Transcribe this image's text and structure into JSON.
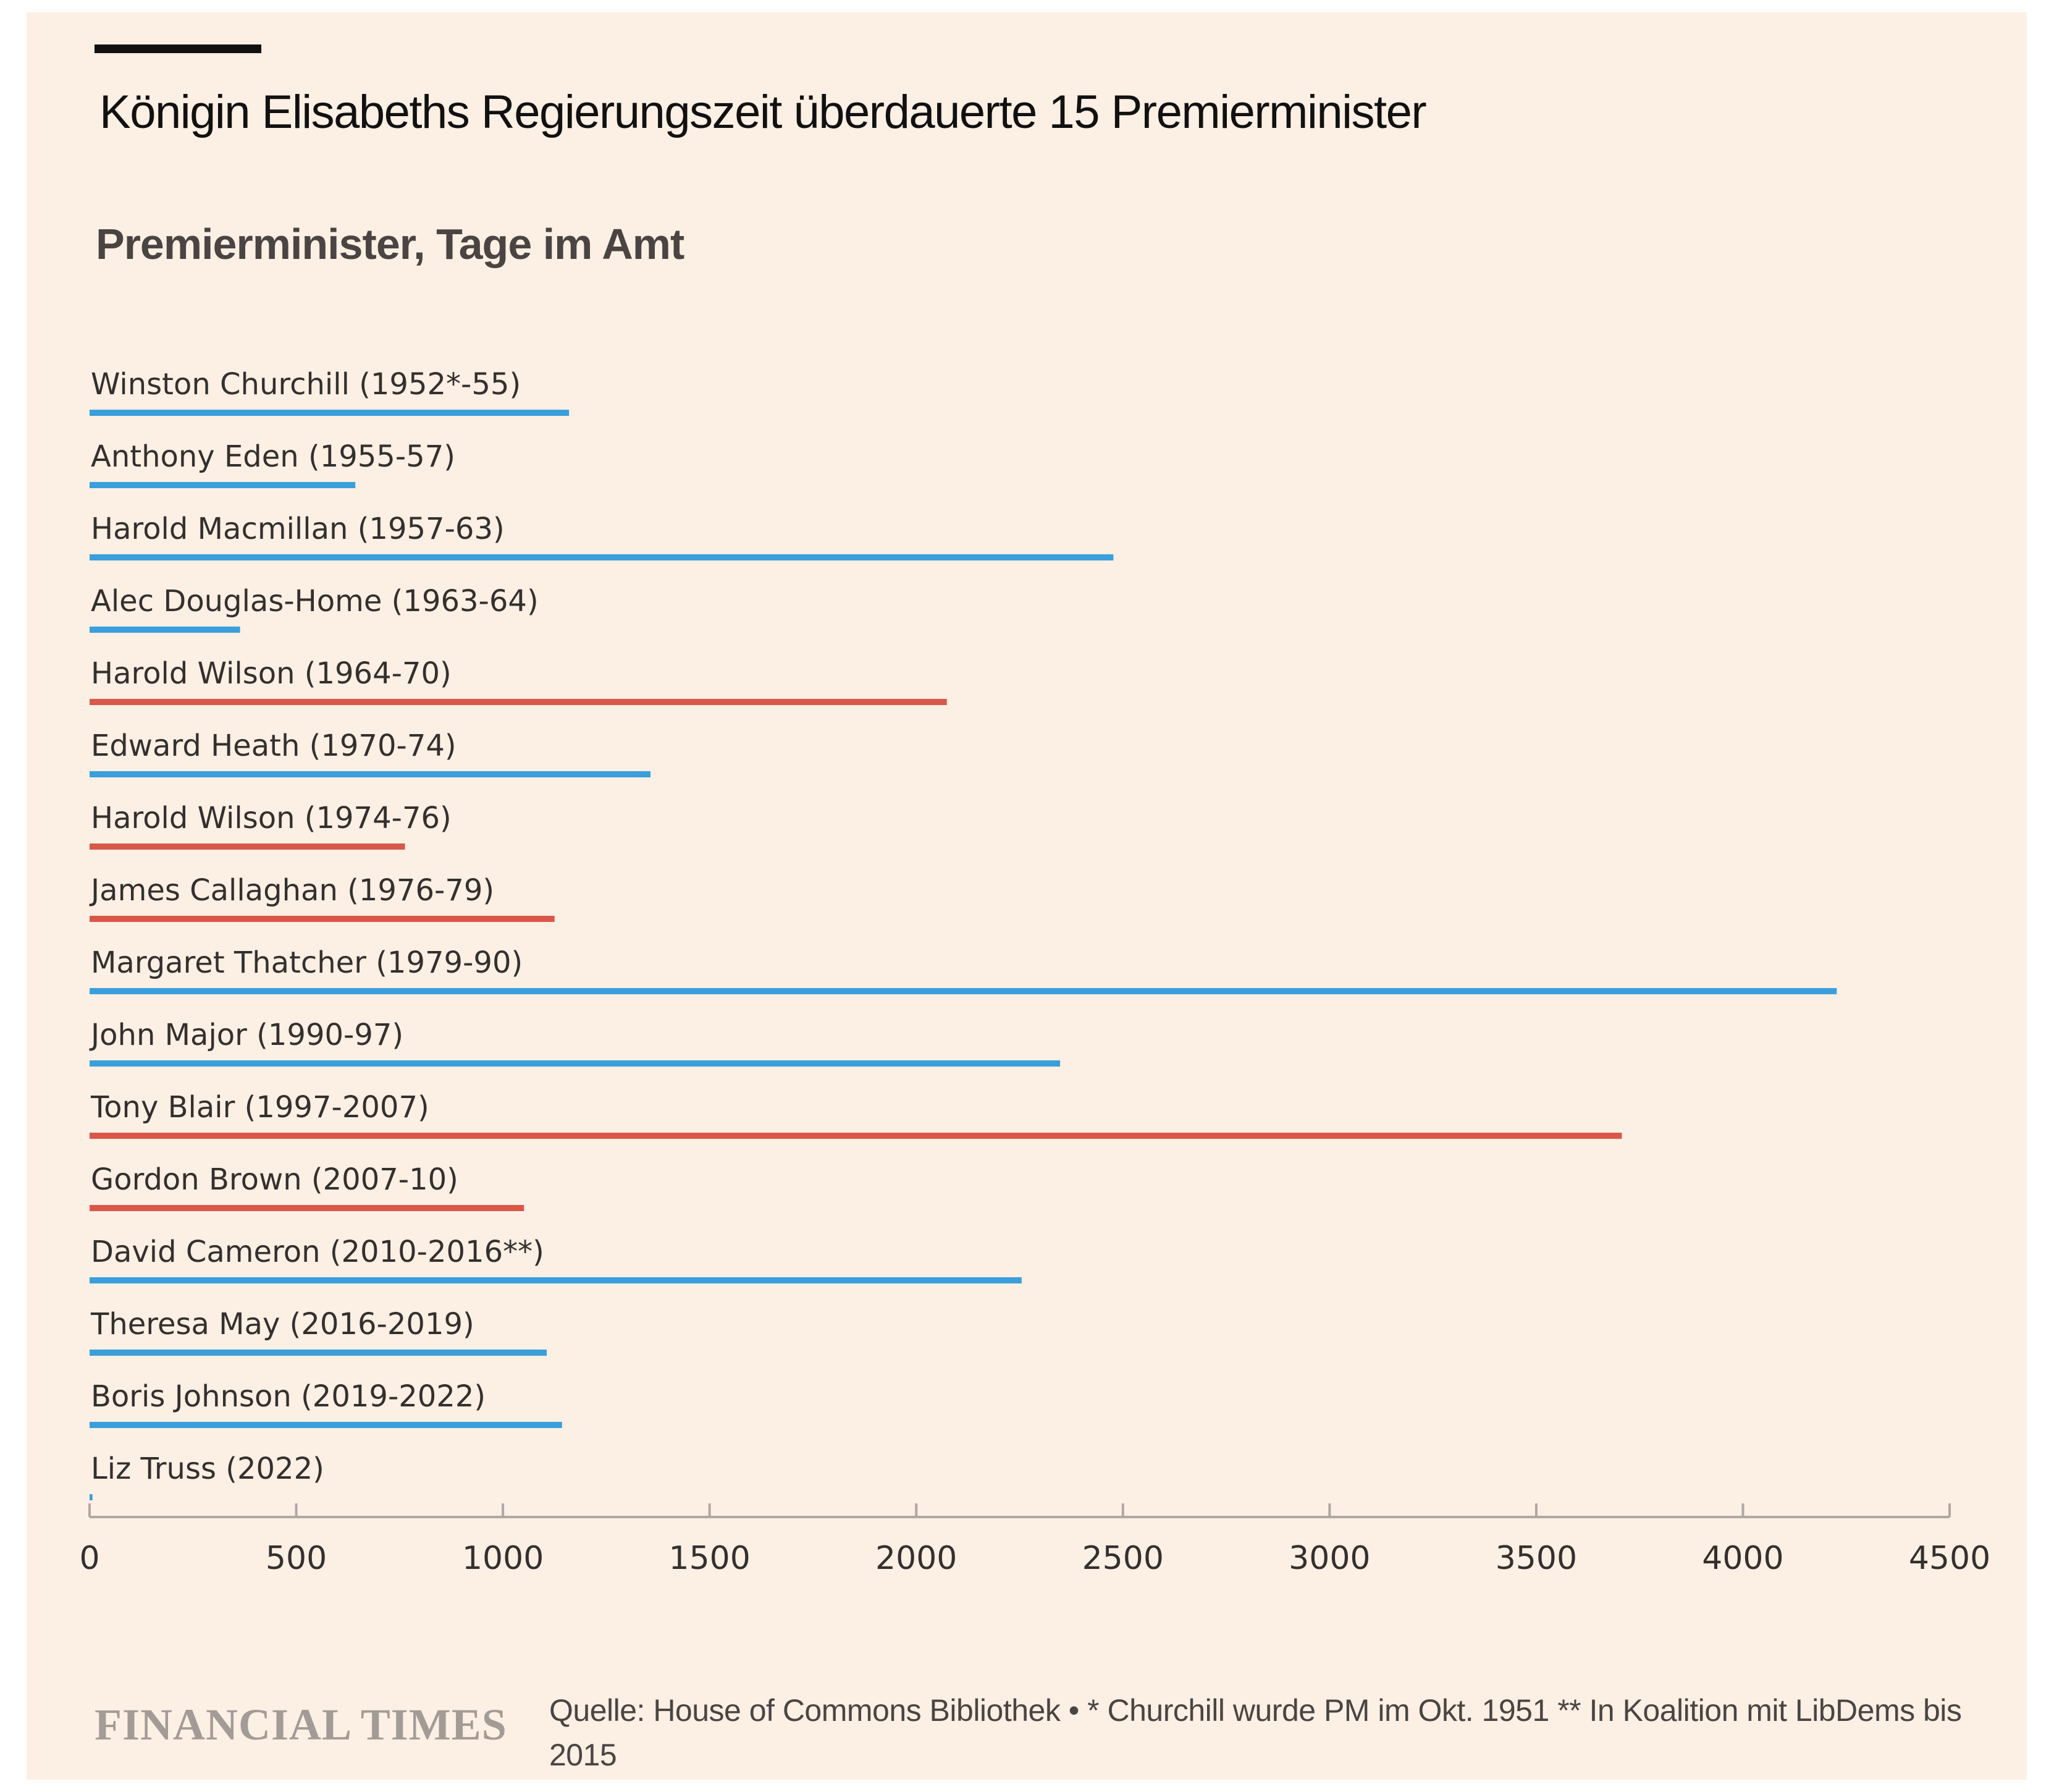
{
  "header": {
    "title": "Königin Elisabeths Regierungszeit überdauerte 15 Premierminister",
    "subtitle": "Premierminister, Tage im Amt"
  },
  "footer": {
    "logo_text": "FINANCIAL TIMES",
    "source": "Quelle: House of Commons Bibliothek • * Churchill wurde PM im Okt. 1951 ** In  Koalition mit LibDems bis 2015"
  },
  "colors": {
    "background": "#fcefe4",
    "conservative": "#3a9fdb",
    "labour": "#d9584a",
    "axis": "#b0a8a2",
    "text": "#33302e"
  },
  "chart_data": {
    "type": "bar",
    "orientation": "horizontal",
    "title": "Königin Elisabeths Regierungszeit überdauerte 15 Premierminister",
    "subtitle": "Premierminister, Tage im Amt",
    "xlim": [
      0,
      4500
    ],
    "xticks": [
      0,
      500,
      1000,
      1500,
      2000,
      2500,
      3000,
      3500,
      4000,
      4500
    ],
    "grid": false,
    "categories": [
      "Winston Churchill (1952*-55)",
      "Anthony Eden (1955-57)",
      "Harold Macmillan (1957-63)",
      "Alec Douglas-Home (1963-64)",
      "Harold Wilson (1964-70)",
      "Edward Heath (1970-74)",
      "Harold Wilson (1974-76)",
      "James Callaghan (1976-79)",
      "Margaret Thatcher (1979-90)",
      "John Major (1990-97)",
      "Tony Blair (1997-2007)",
      "Gordon Brown (2007-10)",
      "David Cameron (2010-2016**)",
      "Theresa May (2016-2019)",
      "Boris Johnson (2019-2022)",
      "Liz Truss (2022)"
    ],
    "values": [
      1160,
      643,
      2477,
      364,
      2074,
      1357,
      763,
      1125,
      4227,
      2348,
      3707,
      1051,
      2255,
      1106,
      1143,
      7
    ],
    "party_colors": [
      "#3a9fdb",
      "#3a9fdb",
      "#3a9fdb",
      "#3a9fdb",
      "#d9584a",
      "#3a9fdb",
      "#d9584a",
      "#d9584a",
      "#3a9fdb",
      "#3a9fdb",
      "#d9584a",
      "#d9584a",
      "#3a9fdb",
      "#3a9fdb",
      "#3a9fdb",
      "#3a9fdb"
    ]
  }
}
